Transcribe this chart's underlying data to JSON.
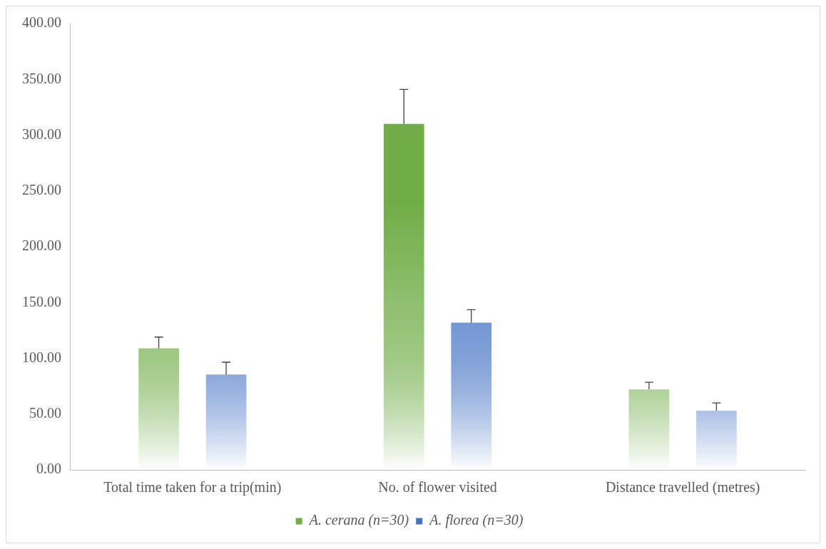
{
  "chart_data": {
    "type": "bar",
    "categories": [
      "Total time taken for a trip(min)",
      "No. of flower visited",
      "Distance travelled (metres)"
    ],
    "series": [
      {
        "name": "A. cerana (n=30)",
        "color": "#70ad47",
        "values": [
          109,
          310,
          72
        ],
        "errors": [
          [
            109,
            119
          ],
          [
            310,
            341
          ],
          [
            72,
            78.5
          ]
        ]
      },
      {
        "name": "A. florea (n=30)",
        "color": "#4472c4",
        "values": [
          85.5,
          132,
          53
        ],
        "errors": [
          [
            85.5,
            96.5
          ],
          [
            132,
            143.5
          ],
          [
            53,
            60
          ]
        ]
      }
    ],
    "ylim": [
      0,
      400
    ],
    "yticks": [
      {
        "value": 0,
        "label": "0.00"
      },
      {
        "value": 50,
        "label": "50.00"
      },
      {
        "value": 100,
        "label": "100.00"
      },
      {
        "value": 150,
        "label": "150.00"
      },
      {
        "value": 200,
        "label": "200.00"
      },
      {
        "value": 250,
        "label": "250.00"
      },
      {
        "value": 300,
        "label": "300.00"
      },
      {
        "value": 350,
        "label": "350.00"
      },
      {
        "value": 400,
        "label": "400.00"
      }
    ],
    "grid": false,
    "legend": "bottom"
  }
}
